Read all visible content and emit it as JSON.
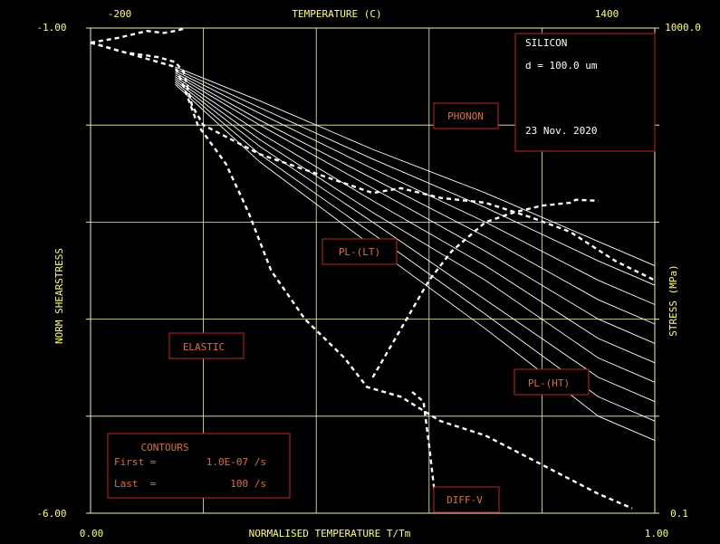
{
  "chart_data": {
    "type": "line",
    "title": "TEMPERATURE (C)",
    "xlabel": "NORMALISED TEMPERATURE T/Tm",
    "ylabel_left": "NORM SHEARSTRESS",
    "ylabel_right": "STRESS (MPa)",
    "xlim": [
      0.0,
      1.0
    ],
    "ylim_log": [
      -6.0,
      -1.0
    ],
    "x_ticks": [
      "0.00",
      "1.00"
    ],
    "y_ticks_left": [
      "-1.00",
      "-6.00"
    ],
    "top_ticks": [
      "-200",
      "1400"
    ],
    "right_ticks": [
      "1000.0",
      "0.1"
    ],
    "grid": true,
    "info_box": {
      "material": "SILICON",
      "grain_size": "d = 100.0 um",
      "date": "23 Nov. 2020"
    },
    "field_labels": [
      "PHONON",
      "PL-(LT)",
      "ELASTIC",
      "PL-(HT)",
      "DIFF-V"
    ],
    "contours_box": {
      "title": "CONTOURS",
      "first_label": "First =",
      "first_value": "1.0E-07 /s",
      "last_label": "Last  =",
      "last_value": "100 /s"
    },
    "boundaries": [
      {
        "points": [
          [
            0.0,
            -1.15
          ],
          [
            0.05,
            -1.1
          ],
          [
            0.1,
            -1.03
          ],
          [
            0.13,
            -1.05
          ],
          [
            0.15,
            -1.03
          ],
          [
            0.17,
            -1.0
          ]
        ]
      },
      {
        "points": [
          [
            0.0,
            -1.15
          ],
          [
            0.06,
            -1.25
          ],
          [
            0.12,
            -1.3
          ],
          [
            0.15,
            -1.35
          ],
          [
            0.165,
            -1.45
          ],
          [
            0.18,
            -1.8
          ],
          [
            0.2,
            -2.0
          ],
          [
            0.3,
            -2.3
          ],
          [
            0.45,
            -2.6
          ],
          [
            0.5,
            -2.7
          ],
          [
            0.55,
            -2.65
          ],
          [
            0.62,
            -2.75
          ],
          [
            0.7,
            -2.8
          ],
          [
            0.78,
            -2.95
          ],
          [
            0.85,
            -3.1
          ],
          [
            0.93,
            -3.4
          ],
          [
            1.0,
            -3.6
          ]
        ]
      },
      {
        "points": [
          [
            0.0,
            -1.15
          ],
          [
            0.15,
            -1.4
          ],
          [
            0.165,
            -1.6
          ],
          [
            0.19,
            -2.0
          ],
          [
            0.24,
            -2.4
          ],
          [
            0.28,
            -2.9
          ],
          [
            0.32,
            -3.5
          ],
          [
            0.38,
            -4.0
          ],
          [
            0.45,
            -4.4
          ],
          [
            0.49,
            -4.7
          ],
          [
            0.55,
            -4.8
          ],
          [
            0.62,
            -5.05
          ],
          [
            0.7,
            -5.2
          ],
          [
            0.8,
            -5.5
          ],
          [
            0.9,
            -5.8
          ],
          [
            0.96,
            -5.95
          ]
        ]
      },
      {
        "points": [
          [
            0.5,
            -4.6
          ],
          [
            0.55,
            -4.1
          ],
          [
            0.6,
            -3.6
          ],
          [
            0.64,
            -3.3
          ],
          [
            0.7,
            -3.0
          ],
          [
            0.75,
            -2.9
          ],
          [
            0.8,
            -2.83
          ],
          [
            0.85,
            -2.8
          ],
          [
            0.86,
            -2.77
          ],
          [
            0.9,
            -2.78
          ]
        ]
      },
      {
        "points": [
          [
            0.57,
            -4.75
          ],
          [
            0.59,
            -4.85
          ],
          [
            0.6,
            -5.3
          ],
          [
            0.61,
            -5.8
          ],
          [
            0.62,
            -6.0
          ]
        ]
      }
    ],
    "contours": [
      {
        "points": [
          [
            0.15,
            -1.4
          ],
          [
            0.3,
            -1.75
          ],
          [
            0.5,
            -2.25
          ],
          [
            0.7,
            -2.7
          ],
          [
            0.9,
            -3.2
          ],
          [
            1.0,
            -3.45
          ]
        ]
      },
      {
        "points": [
          [
            0.15,
            -1.42
          ],
          [
            0.3,
            -1.82
          ],
          [
            0.5,
            -2.35
          ],
          [
            0.7,
            -2.85
          ],
          [
            0.9,
            -3.4
          ],
          [
            1.0,
            -3.65
          ]
        ]
      },
      {
        "points": [
          [
            0.15,
            -1.44
          ],
          [
            0.3,
            -1.88
          ],
          [
            0.5,
            -2.45
          ],
          [
            0.7,
            -3.0
          ],
          [
            0.9,
            -3.6
          ],
          [
            1.0,
            -3.85
          ]
        ]
      },
      {
        "points": [
          [
            0.15,
            -1.46
          ],
          [
            0.3,
            -1.95
          ],
          [
            0.5,
            -2.55
          ],
          [
            0.7,
            -3.15
          ],
          [
            0.9,
            -3.8
          ],
          [
            1.0,
            -4.05
          ]
        ]
      },
      {
        "points": [
          [
            0.15,
            -1.48
          ],
          [
            0.3,
            -2.0
          ],
          [
            0.5,
            -2.65
          ],
          [
            0.7,
            -3.3
          ],
          [
            0.9,
            -4.0
          ],
          [
            1.0,
            -4.25
          ]
        ]
      },
      {
        "points": [
          [
            0.15,
            -1.5
          ],
          [
            0.3,
            -2.08
          ],
          [
            0.5,
            -2.78
          ],
          [
            0.7,
            -3.45
          ],
          [
            0.9,
            -4.2
          ],
          [
            1.0,
            -4.45
          ]
        ]
      },
      {
        "points": [
          [
            0.15,
            -1.52
          ],
          [
            0.3,
            -2.15
          ],
          [
            0.5,
            -2.9
          ],
          [
            0.7,
            -3.6
          ],
          [
            0.9,
            -4.4
          ],
          [
            1.0,
            -4.65
          ]
        ]
      },
      {
        "points": [
          [
            0.15,
            -1.54
          ],
          [
            0.3,
            -2.22
          ],
          [
            0.5,
            -3.0
          ],
          [
            0.7,
            -3.8
          ],
          [
            0.9,
            -4.6
          ],
          [
            1.0,
            -4.85
          ]
        ]
      },
      {
        "points": [
          [
            0.15,
            -1.56
          ],
          [
            0.3,
            -2.3
          ],
          [
            0.5,
            -3.12
          ],
          [
            0.7,
            -3.95
          ],
          [
            0.9,
            -4.8
          ],
          [
            1.0,
            -5.05
          ]
        ]
      },
      {
        "points": [
          [
            0.15,
            -1.58
          ],
          [
            0.3,
            -2.38
          ],
          [
            0.5,
            -3.25
          ],
          [
            0.7,
            -4.1
          ],
          [
            0.9,
            -5.0
          ],
          [
            1.0,
            -5.25
          ]
        ]
      }
    ]
  }
}
